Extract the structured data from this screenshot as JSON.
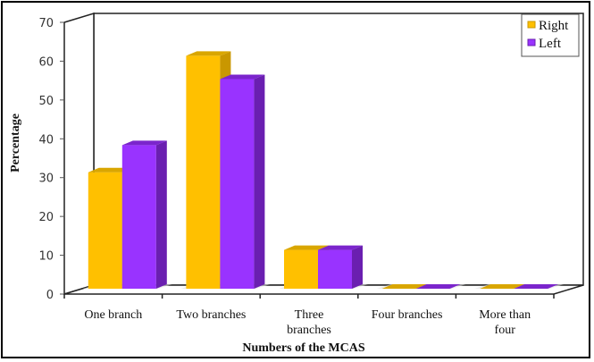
{
  "chart_data": {
    "type": "bar",
    "style": "3d-clustered-column",
    "title": "",
    "xlabel": "Numbers of the MCAS",
    "ylabel": "Percentage",
    "ylim": [
      0,
      70
    ],
    "yticks": [
      0,
      10,
      20,
      30,
      40,
      50,
      60,
      70
    ],
    "categories": [
      "One branch",
      "Two branches",
      "Three branches",
      "Four branches",
      "More than four"
    ],
    "category_lines": [
      [
        "One branch"
      ],
      [
        "Two branches"
      ],
      [
        "Three",
        "branches"
      ],
      [
        "Four branches"
      ],
      [
        "More than",
        "four"
      ]
    ],
    "series": [
      {
        "name": "Right",
        "values": [
          30,
          60,
          10,
          0,
          0
        ],
        "color": "#FFC000",
        "side_color": "#C99700",
        "top_color": "#D9A600"
      },
      {
        "name": "Left",
        "values": [
          37,
          54,
          10,
          0,
          0
        ],
        "color": "#9933FF",
        "side_color": "#6A1FB0",
        "top_color": "#7B25CC"
      }
    ],
    "legend_position": "top-right",
    "grid": false
  }
}
